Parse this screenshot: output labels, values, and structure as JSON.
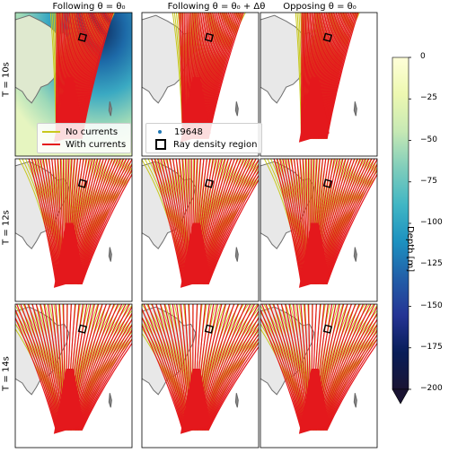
{
  "figure": {
    "columns": [
      {
        "title": "Following θ = θ₀"
      },
      {
        "title": "Following θ = θ₀ + Δθ"
      },
      {
        "title": "Opposing θ = θ₀"
      }
    ],
    "rows": [
      {
        "label": "T = 10s"
      },
      {
        "label": "T = 12s"
      },
      {
        "label": "T = 14s"
      }
    ],
    "colorbar": {
      "label": "Depth [m]",
      "ticks": [
        "0",
        "−25",
        "−50",
        "−75",
        "−100",
        "−125",
        "−150",
        "−175",
        "−200"
      ],
      "colors": [
        "#ffffd9",
        "#edf8b1",
        "#c7e9b4",
        "#7fcdbb",
        "#41b6c4",
        "#1d91c0",
        "#225ea8",
        "#253494",
        "#081d58",
        "#1a1433"
      ]
    },
    "legend_left": {
      "entries": [
        {
          "label": "No currents",
          "color": "#c8c81e"
        },
        {
          "label": "With currents",
          "color": "#e4181c"
        }
      ]
    },
    "legend_right": {
      "entries": [
        {
          "label": "19648",
          "marker": "dot"
        },
        {
          "label": "Ray density region",
          "marker": "square"
        }
      ]
    },
    "colors": {
      "with_currents": "#e4181c",
      "no_currents": "#c8c81e",
      "land": "#e8e8e8",
      "land_edge": "#707070"
    }
  },
  "chart_data": {
    "type": "line",
    "title": "",
    "panels": [
      {
        "row": "T = 10s",
        "column": "Following θ = θ₀",
        "series": [
          "No currents",
          "With currents"
        ],
        "bathymetry": true
      },
      {
        "row": "T = 10s",
        "column": "Following θ = θ₀ + Δθ",
        "series": [
          "No currents",
          "With currents"
        ],
        "bathymetry": false
      },
      {
        "row": "T = 10s",
        "column": "Opposing θ = θ₀",
        "series": [
          "No currents",
          "With currents"
        ],
        "bathymetry": false
      },
      {
        "row": "T = 12s",
        "column": "Following θ = θ₀",
        "series": [
          "No currents",
          "With currents"
        ],
        "bathymetry": false
      },
      {
        "row": "T = 12s",
        "column": "Following θ = θ₀ + Δθ",
        "series": [
          "No currents",
          "With currents"
        ],
        "bathymetry": false
      },
      {
        "row": "T = 12s",
        "column": "Opposing θ = θ₀",
        "series": [
          "No currents",
          "With currents"
        ],
        "bathymetry": false
      },
      {
        "row": "T = 14s",
        "column": "Following θ = θ₀",
        "series": [
          "No currents",
          "With currents"
        ],
        "bathymetry": false
      },
      {
        "row": "T = 14s",
        "column": "Following θ = θ₀ + Δθ",
        "series": [
          "No currents",
          "With currents"
        ],
        "bathymetry": false
      },
      {
        "row": "T = 14s",
        "column": "Opposing θ = θ₀",
        "series": [
          "No currents",
          "With currents"
        ],
        "bathymetry": false
      }
    ],
    "colorbar_range": [
      -200,
      0
    ],
    "legend": [
      "No currents",
      "With currents",
      "19648",
      "Ray density region"
    ]
  }
}
